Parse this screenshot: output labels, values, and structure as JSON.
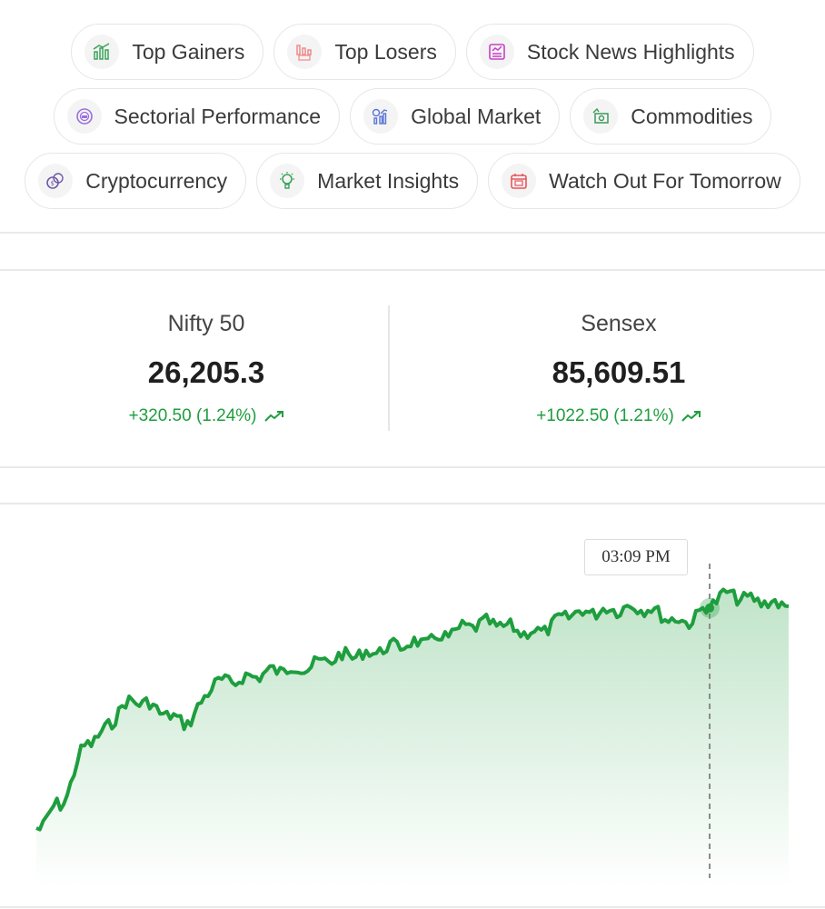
{
  "chips": [
    [
      {
        "label": "Top Gainers",
        "icon": "top-gainers-icon",
        "color": "#3aa35a",
        "name": "chip-top-gainers"
      },
      {
        "label": "Top Losers",
        "icon": "top-losers-icon",
        "color": "#f08a8a",
        "name": "chip-top-losers"
      },
      {
        "label": "Stock News Highlights",
        "icon": "news-icon",
        "color": "#c63fc9",
        "name": "chip-stock-news-highlights"
      }
    ],
    [
      {
        "label": "Sectorial Performance",
        "icon": "sector-icon",
        "color": "#9b6fe0",
        "name": "chip-sectorial-performance"
      },
      {
        "label": "Global Market",
        "icon": "global-market-icon",
        "color": "#5a73d8",
        "name": "chip-global-market"
      },
      {
        "label": "Commodities",
        "icon": "commodities-icon",
        "color": "#3c9a5a",
        "name": "chip-commodities"
      }
    ],
    [
      {
        "label": "Cryptocurrency",
        "icon": "crypto-icon",
        "color": "#6f5aa8",
        "name": "chip-cryptocurrency"
      },
      {
        "label": "Market Insights",
        "icon": "insights-icon",
        "color": "#3aa35a",
        "name": "chip-market-insights"
      },
      {
        "label": "Watch Out For Tomorrow",
        "icon": "calendar-icon",
        "color": "#e8555a",
        "name": "chip-watch-out-for-tomorrow"
      }
    ]
  ],
  "indices": {
    "nifty": {
      "name": "Nifty 50",
      "value": "26,205.3",
      "change": "+320.50 (1.24%)"
    },
    "sensex": {
      "name": "Sensex",
      "value": "85,609.51",
      "change": "+1022.50 (1.21%)"
    }
  },
  "chart": {
    "tooltip_time": "03:09 PM",
    "line_color": "#1e9e3e",
    "point_count": 220,
    "marker_index": 196
  }
}
